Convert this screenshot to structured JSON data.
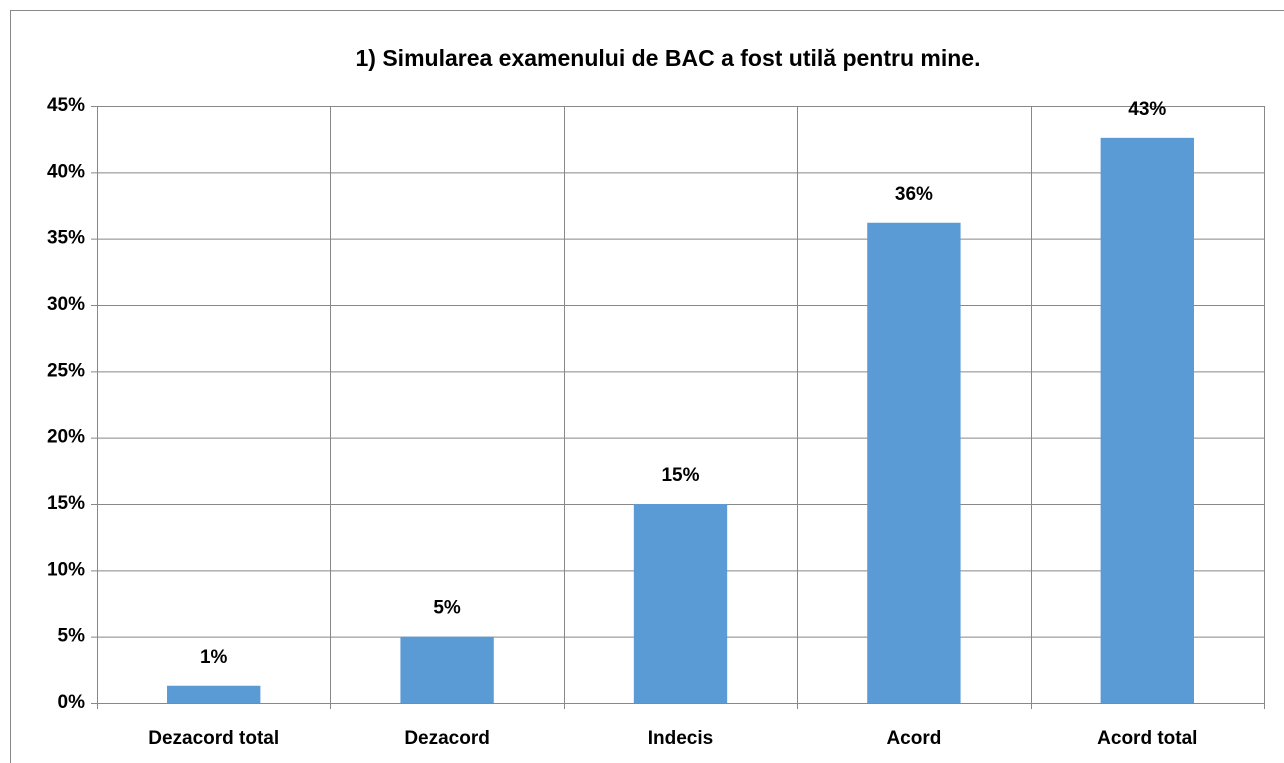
{
  "chart_data": {
    "type": "bar",
    "title": "1) Simularea examenului de BAC a fost utilă pentru mine.",
    "categories": [
      "Dezacord total",
      "Dezacord",
      "Indecis",
      "Acord",
      "Acord total"
    ],
    "values": [
      1.3,
      5,
      15,
      36.2,
      42.6
    ],
    "value_labels": [
      "1%",
      "5%",
      "15%",
      "36%",
      "43%"
    ],
    "color": "#5b9bd5",
    "ylim": [
      0,
      45
    ],
    "yticks": [
      {
        "value": 0,
        "label": "0%"
      },
      {
        "value": 5,
        "label": "5%"
      },
      {
        "value": 10,
        "label": "10%"
      },
      {
        "value": 15,
        "label": "15%"
      },
      {
        "value": 20,
        "label": "20%"
      },
      {
        "value": 25,
        "label": "25%"
      },
      {
        "value": 30,
        "label": "30%"
      },
      {
        "value": 35,
        "label": "35%"
      },
      {
        "value": 40,
        "label": "40%"
      },
      {
        "value": 45,
        "label": "45%"
      }
    ],
    "grid": true
  }
}
